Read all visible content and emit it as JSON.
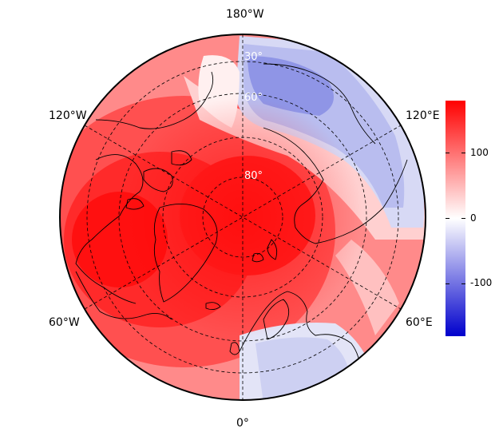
{
  "map": {
    "projection": "north-polar-stereographic",
    "longitude_labels": {
      "top": "180°W",
      "upper_left": "120°W",
      "upper_right": "120°E",
      "lower_left": "60°W",
      "lower_right": "60°E",
      "bottom": "0°"
    },
    "latitude_labels": {
      "outer": "30°",
      "middle": "60°",
      "inner": "80°"
    }
  },
  "colorbar": {
    "min": -180,
    "max": 180,
    "ticks": [
      {
        "value": 100,
        "label": "100"
      },
      {
        "value": 0,
        "label": "0"
      },
      {
        "value": -100,
        "label": "-100"
      }
    ],
    "colors": {
      "low": "#0000cc",
      "mid": "#ffffff",
      "high": "#ff0000"
    }
  },
  "colors": {
    "coastline": "#000000",
    "graticule": "#000000",
    "background": "#ffffff"
  }
}
